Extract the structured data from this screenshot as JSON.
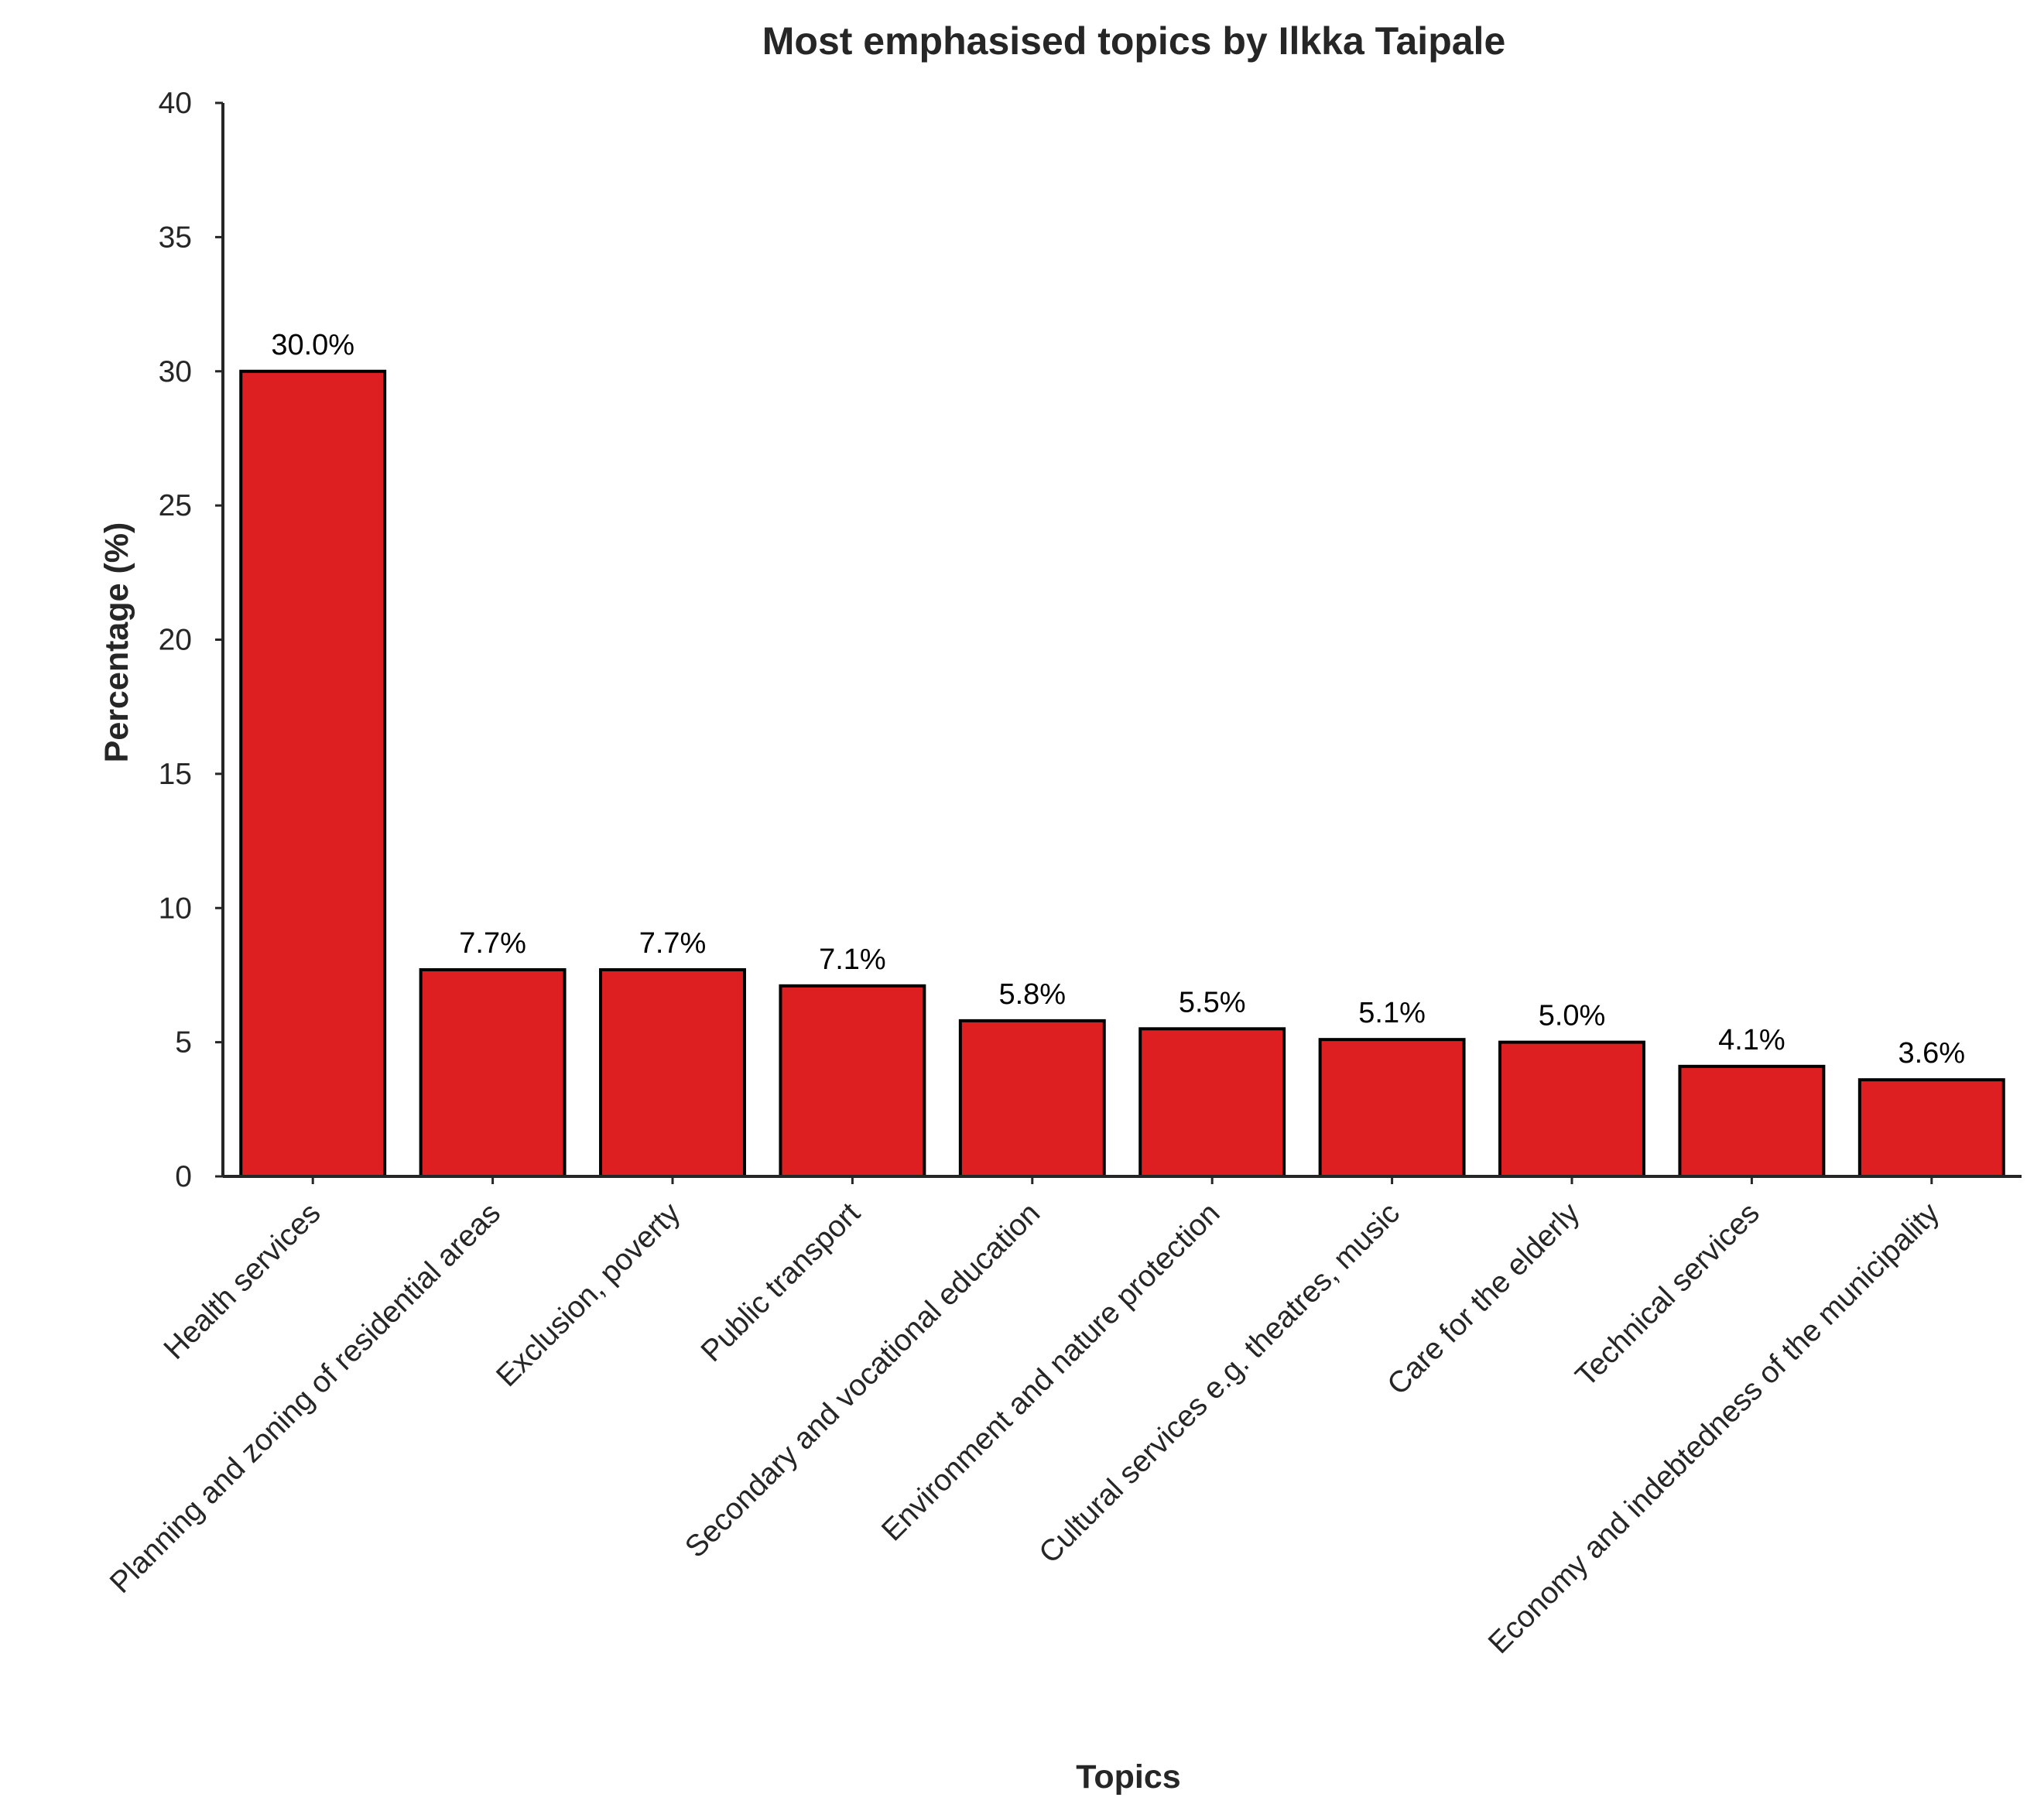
{
  "chart_data": {
    "type": "bar",
    "title": "Most emphasised topics by Ilkka Taipale",
    "xlabel": "Topics",
    "ylabel": "Percentage (%)",
    "ylim": [
      0,
      40
    ],
    "yticks": [
      0,
      5,
      10,
      15,
      20,
      25,
      30,
      35,
      40
    ],
    "categories": [
      "Health services",
      "Planning and zoning of residential areas",
      "Exclusion, poverty",
      "Public transport",
      "Secondary and vocational education",
      "Environment and nature protection",
      "Cultural services e.g. theatres, music",
      "Care for the elderly",
      "Technical services",
      "Economy and indebtedness of the municipality"
    ],
    "values": [
      30.0,
      7.7,
      7.7,
      7.1,
      5.8,
      5.5,
      5.1,
      5.0,
      4.1,
      3.6
    ],
    "data_labels": [
      "30.0%",
      "7.7%",
      "7.7%",
      "7.1%",
      "5.8%",
      "5.5%",
      "5.1%",
      "5.0%",
      "4.1%",
      "3.6%"
    ],
    "bar_color": "#de1f22",
    "bar_edge_color": "#000000",
    "grid": false,
    "x_tick_rotation_deg": 45
  }
}
